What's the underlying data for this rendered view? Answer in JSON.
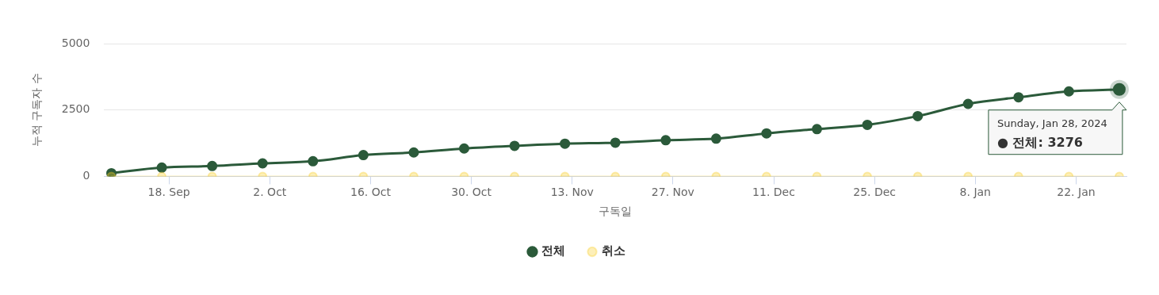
{
  "chart_data": {
    "type": "line",
    "xlabel": "구독일",
    "ylabel": "누적 구독자 수",
    "x": [
      "2023-09-10",
      "2023-09-17",
      "2023-09-24",
      "2023-10-01",
      "2023-10-08",
      "2023-10-15",
      "2023-10-22",
      "2023-10-29",
      "2023-11-05",
      "2023-11-12",
      "2023-11-19",
      "2023-11-26",
      "2023-12-03",
      "2023-12-10",
      "2023-12-17",
      "2023-12-24",
      "2023-12-31",
      "2024-01-07",
      "2024-01-14",
      "2024-01-21",
      "2024-01-28"
    ],
    "series": [
      {
        "name": "전체",
        "color": "#2b5a3a",
        "values": [
          120,
          330,
          390,
          490,
          570,
          800,
          900,
          1050,
          1150,
          1230,
          1270,
          1360,
          1420,
          1620,
          1780,
          1940,
          2270,
          2730,
          2980,
          3200,
          3276
        ]
      },
      {
        "name": "취소",
        "color": "#f9cf2a",
        "values": [
          0,
          0,
          0,
          0,
          0,
          0,
          0,
          0,
          0,
          0,
          0,
          0,
          0,
          0,
          0,
          0,
          0,
          0,
          0,
          0,
          0
        ]
      }
    ],
    "xlim": [
      "2023-09-09",
      "2024-01-29"
    ],
    "xticks": [
      {
        "value": "2023-09-18",
        "label": "18. Sep"
      },
      {
        "value": "2023-10-02",
        "label": "2. Oct"
      },
      {
        "value": "2023-10-16",
        "label": "16. Oct"
      },
      {
        "value": "2023-10-30",
        "label": "30. Oct"
      },
      {
        "value": "2023-11-13",
        "label": "13. Nov"
      },
      {
        "value": "2023-11-27",
        "label": "27. Nov"
      },
      {
        "value": "2023-12-11",
        "label": "11. Dec"
      },
      {
        "value": "2023-12-25",
        "label": "25. Dec"
      },
      {
        "value": "2024-01-08",
        "label": "8. Jan"
      },
      {
        "value": "2024-01-22",
        "label": "22. Jan"
      }
    ],
    "ylim": [
      0,
      5000
    ],
    "yticks": [
      0,
      2500,
      5000
    ],
    "grid": "y",
    "legend": "bottom",
    "marker": "circle",
    "line_style": "solid",
    "annotations": [
      {
        "text": "Sunday, Jan 28, 2024\n● 전체: 3276",
        "x": "2024-01-28",
        "y": 3276
      }
    ]
  }
}
